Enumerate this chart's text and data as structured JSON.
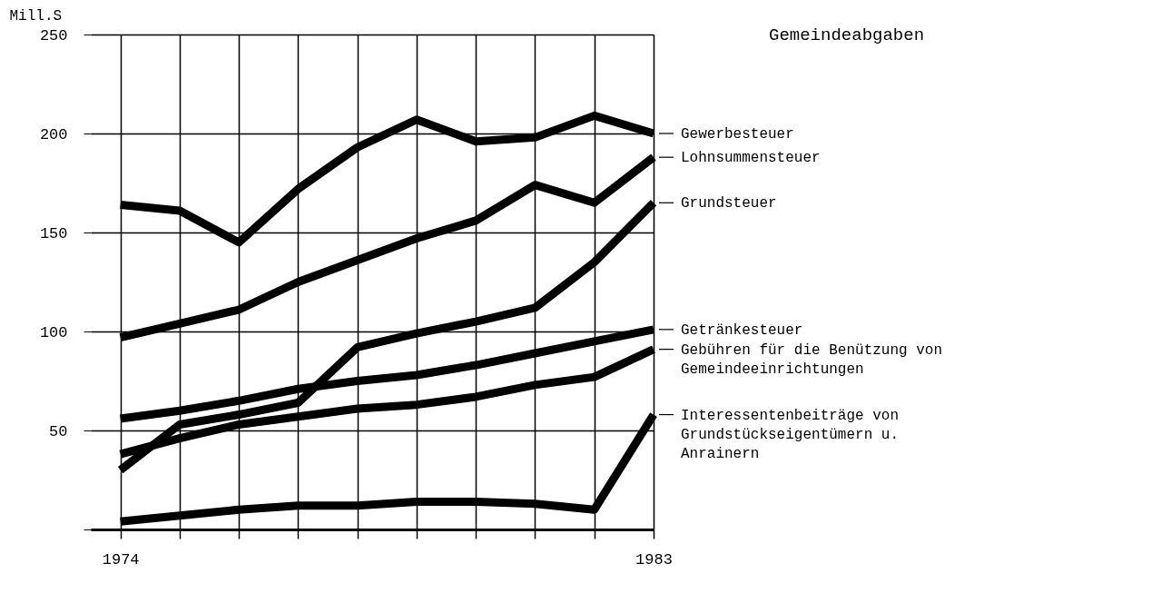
{
  "chart_data": {
    "type": "line",
    "title": "Gemeindeabgaben",
    "ylabel": "Mill.S",
    "x": [
      1974,
      1975,
      1976,
      1977,
      1978,
      1979,
      1980,
      1981,
      1982,
      1983
    ],
    "xlim": [
      1973.5,
      1983
    ],
    "xticks": [
      1974,
      {
        "value": 1975,
        "label": null
      },
      {
        "value": 1976,
        "label": null
      },
      {
        "value": 1977,
        "label": null
      },
      {
        "value": 1978,
        "label": null
      },
      {
        "value": 1979,
        "label": null
      },
      {
        "value": 1980,
        "label": null
      },
      {
        "value": 1981,
        "label": null
      },
      {
        "value": 1982,
        "label": null
      },
      1983
    ],
    "ylim": [
      0,
      250
    ],
    "yticks": [
      {
        "value": 0,
        "label": null
      },
      50,
      100,
      150,
      200,
      250
    ],
    "grid": true,
    "legend": "right",
    "marker": "none",
    "line_style": "solid",
    "series": [
      {
        "name": "Gewerbesteuer",
        "color": "#000000",
        "values": [
          164,
          161,
          145,
          172,
          193,
          207,
          196,
          198,
          209,
          200
        ]
      },
      {
        "name": "Lohnsummensteuer",
        "color": "#000000",
        "values": [
          97,
          104,
          111,
          125,
          136,
          147,
          156,
          174,
          165,
          188
        ]
      },
      {
        "name": "Grundsteuer",
        "color": "#000000",
        "values": [
          30,
          53,
          58,
          64,
          92,
          99,
          105,
          112,
          135,
          165
        ]
      },
      {
        "name": "Getränkesteuer",
        "color": "#000000",
        "values": [
          56,
          60,
          65,
          71,
          75,
          78,
          83,
          89,
          95,
          101
        ]
      },
      {
        "name": "Gebühren für die Benützung von Gemeindeeinrichtungen",
        "color": "#000000",
        "values": [
          38,
          46,
          53,
          57,
          61,
          63,
          67,
          73,
          77,
          91
        ]
      },
      {
        "name": "Interessentenbeiträge von Grundstückseigentümern u. Anrainern",
        "color": "#000000",
        "values": [
          4,
          7,
          10,
          12,
          12,
          14,
          14,
          13,
          10,
          58
        ]
      }
    ]
  }
}
